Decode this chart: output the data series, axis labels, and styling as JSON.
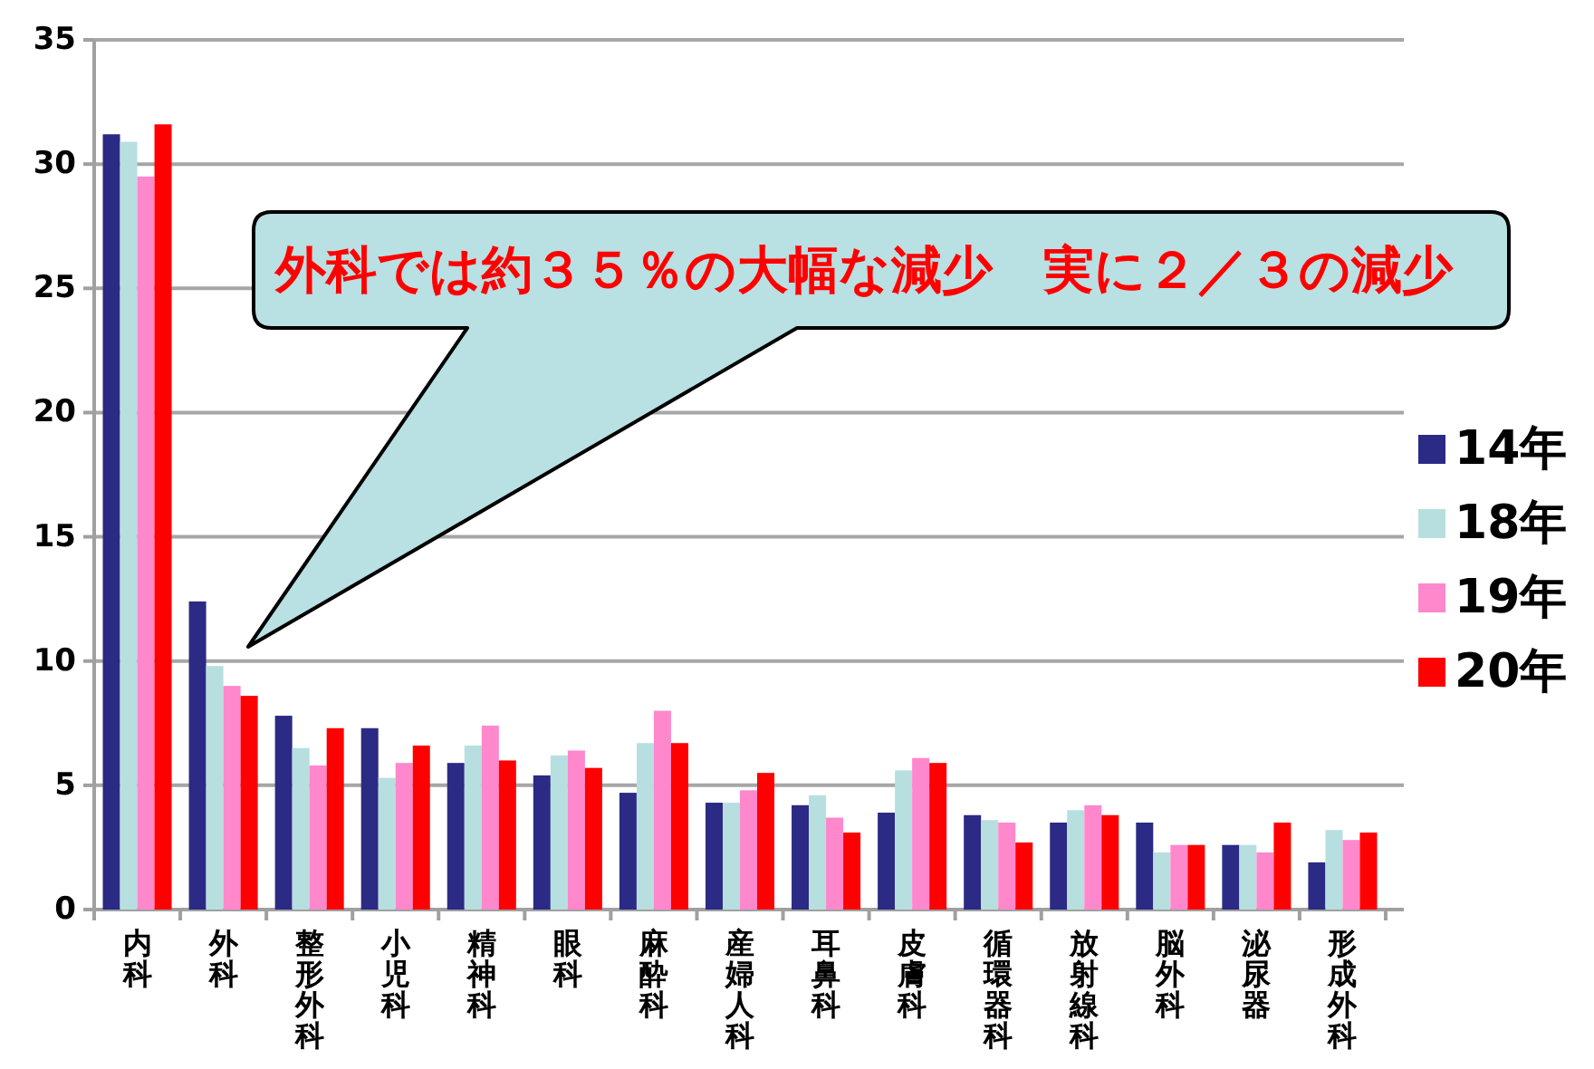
{
  "chart_data": {
    "type": "bar",
    "categories": [
      "内科",
      "外科",
      "整形外科",
      "小児科",
      "精神科",
      "眼科",
      "麻酔科",
      "産婦人科",
      "耳鼻科",
      "皮膚科",
      "循環器科",
      "放射線科",
      "脳外科",
      "泌尿器",
      "形成外科"
    ],
    "series": [
      {
        "name": "14年",
        "color": "#2b2a84",
        "values": [
          31.2,
          12.4,
          7.8,
          7.3,
          5.9,
          5.4,
          4.7,
          4.3,
          4.2,
          3.9,
          3.8,
          3.5,
          3.5,
          2.6,
          1.9
        ]
      },
      {
        "name": "18年",
        "color": "#b7dfe0",
        "values": [
          30.9,
          9.8,
          6.5,
          5.3,
          6.6,
          6.2,
          6.7,
          4.3,
          4.6,
          5.6,
          3.6,
          4.0,
          2.3,
          2.6,
          3.2
        ]
      },
      {
        "name": "19年",
        "color": "#ff88cc",
        "values": [
          29.5,
          9.0,
          5.8,
          5.9,
          7.4,
          6.4,
          8.0,
          4.8,
          3.7,
          6.1,
          3.5,
          4.2,
          2.6,
          2.3,
          2.8
        ]
      },
      {
        "name": "20年",
        "color": "#ff0000",
        "values": [
          31.6,
          8.6,
          7.3,
          6.6,
          6.0,
          5.7,
          6.7,
          5.5,
          3.1,
          5.9,
          2.7,
          3.8,
          2.6,
          3.5,
          3.1
        ]
      }
    ],
    "ylim": [
      0,
      35
    ],
    "yticks": [
      0,
      5,
      10,
      15,
      20,
      25,
      30,
      35
    ],
    "grid": "y",
    "legend": "right",
    "annotations": [
      "外科では約３５％の大幅な減少　実に２／３の減少"
    ]
  }
}
